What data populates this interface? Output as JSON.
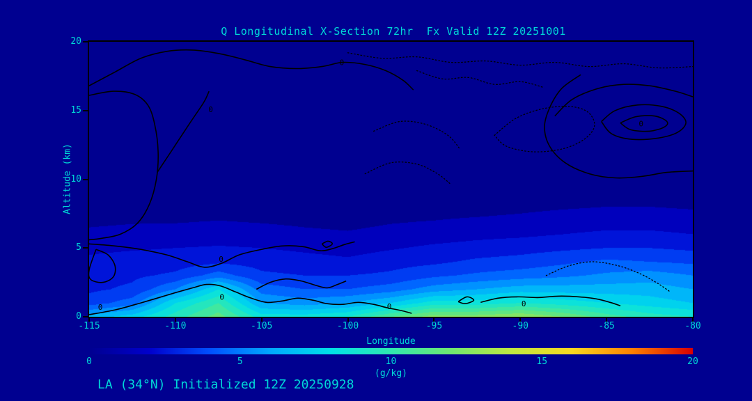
{
  "page": {
    "background_color": "#000090",
    "text_color": "#00d8d8",
    "contour_color": "#000000"
  },
  "chart_data": {
    "type": "heatmap",
    "title": "Q Longitudinal X-Section 72hr  Fx Valid 12Z 20251001",
    "xlabel": "Longitude",
    "ylabel": "Altitude (km)",
    "footer": "LA (34°N) Initialized 12Z 20250928",
    "units_label": "(g/kg)",
    "xlim": [
      -115,
      -80
    ],
    "ylim": [
      0,
      20
    ],
    "x_ticks": [
      "-115",
      "-110",
      "-105",
      "-100",
      "-95",
      "-90",
      "-85",
      "-80"
    ],
    "y_ticks": [
      "20",
      "15",
      "10",
      "5",
      "0"
    ],
    "colorbar": {
      "min": 0,
      "max": 20,
      "ticks": [
        "0",
        "5",
        "10",
        "15",
        "20"
      ],
      "stops": [
        [
          0,
          "#000090"
        ],
        [
          2,
          "#0000cc"
        ],
        [
          4,
          "#0050ff"
        ],
        [
          6,
          "#00a8ff"
        ],
        [
          8,
          "#00e0e8"
        ],
        [
          10,
          "#30e8b0"
        ],
        [
          12,
          "#70e870"
        ],
        [
          14,
          "#c0e840"
        ],
        [
          16,
          "#f8d820"
        ],
        [
          18,
          "#ff8000"
        ],
        [
          20,
          "#d80000"
        ]
      ]
    },
    "grid": {
      "lons": [
        -115,
        -112.5,
        -110,
        -107.5,
        -105,
        -102.5,
        -100,
        -97.5,
        -95,
        -92.5,
        -90,
        -87.5,
        -85,
        -82.5,
        -80
      ],
      "alts": [
        0,
        1,
        2,
        3,
        4,
        5,
        6,
        7,
        8,
        10,
        12,
        14,
        16,
        18,
        20
      ],
      "q": [
        [
          6.5,
          7.5,
          9.5,
          11.5,
          8.5,
          8.5,
          9.0,
          11.0,
          12.5,
          12.5,
          13.0,
          12.0,
          10.5,
          9.5,
          9.0
        ],
        [
          3.5,
          4.5,
          8.0,
          10.0,
          6.0,
          5.5,
          6.0,
          7.0,
          8.5,
          8.5,
          9.0,
          8.5,
          8.0,
          7.5,
          7.0
        ],
        [
          2.8,
          3.2,
          5.0,
          8.0,
          4.5,
          4.0,
          4.0,
          4.5,
          5.5,
          6.0,
          6.5,
          6.5,
          6.5,
          6.5,
          6.0
        ],
        [
          2.6,
          2.8,
          3.2,
          4.5,
          3.2,
          3.0,
          3.0,
          3.2,
          3.8,
          4.2,
          4.5,
          4.8,
          5.2,
          5.5,
          5.0
        ],
        [
          2.2,
          2.4,
          2.5,
          2.8,
          2.6,
          2.4,
          2.2,
          2.6,
          2.8,
          3.2,
          3.4,
          3.8,
          4.2,
          4.0,
          3.8
        ],
        [
          1.8,
          1.9,
          2.0,
          2.1,
          2.0,
          1.8,
          1.6,
          1.9,
          2.2,
          2.4,
          2.6,
          2.8,
          3.0,
          3.0,
          2.8
        ],
        [
          1.2,
          1.3,
          1.4,
          1.5,
          1.4,
          1.2,
          1.1,
          1.3,
          1.5,
          1.7,
          1.8,
          2.0,
          2.2,
          2.2,
          2.0
        ],
        [
          0.8,
          0.9,
          0.9,
          1.0,
          0.9,
          0.8,
          0.7,
          0.9,
          1.0,
          1.1,
          1.2,
          1.4,
          1.5,
          1.5,
          1.4
        ],
        [
          0.5,
          0.6,
          0.6,
          0.7,
          0.6,
          0.5,
          0.5,
          0.6,
          0.7,
          0.7,
          0.8,
          0.9,
          1.0,
          1.0,
          0.9
        ],
        [
          0.3,
          0.3,
          0.3,
          0.4,
          0.3,
          0.3,
          0.3,
          0.3,
          0.4,
          0.4,
          0.4,
          0.5,
          0.5,
          0.5,
          0.5
        ],
        [
          0.2,
          0.2,
          0.2,
          0.2,
          0.2,
          0.2,
          0.2,
          0.2,
          0.2,
          0.3,
          0.3,
          0.3,
          0.3,
          0.3,
          0.3
        ],
        [
          0.1,
          0.1,
          0.1,
          0.1,
          0.1,
          0.1,
          0.1,
          0.1,
          0.2,
          0.2,
          0.2,
          0.2,
          0.2,
          0.2,
          0.2
        ],
        [
          0.1,
          0.1,
          0.1,
          0.1,
          0.1,
          0.1,
          0.1,
          0.1,
          0.1,
          0.1,
          0.1,
          0.1,
          0.1,
          0.1,
          0.1
        ],
        [
          0.05,
          0.05,
          0.05,
          0.05,
          0.05,
          0.05,
          0.05,
          0.05,
          0.05,
          0.05,
          0.05,
          0.05,
          0.05,
          0.05,
          0.05
        ],
        [
          0.05,
          0.05,
          0.05,
          0.05,
          0.05,
          0.05,
          0.05,
          0.05,
          0.05,
          0.05,
          0.05,
          0.05,
          0.05,
          0.05,
          0.05
        ]
      ]
    },
    "contours": [
      {
        "style": "solid",
        "pts": [
          [
            -115,
            16.8
          ],
          [
            -113.5,
            17.8
          ],
          [
            -112,
            18.8
          ],
          [
            -110.5,
            19.3
          ],
          [
            -109,
            19.4
          ],
          [
            -107.5,
            19.15
          ],
          [
            -106,
            18.7
          ],
          [
            -104.5,
            18.2
          ],
          [
            -103,
            18.05
          ],
          [
            -101.5,
            18.2
          ],
          [
            -100.3,
            18.5
          ],
          [
            -99,
            18.35
          ],
          [
            -97.8,
            17.9
          ],
          [
            -96.8,
            17.2
          ],
          [
            -96.2,
            16.5
          ]
        ]
      },
      {
        "style": "solid",
        "pts": [
          [
            -115,
            16.1
          ],
          [
            -113.6,
            16.4
          ],
          [
            -112.4,
            16.2
          ],
          [
            -111.6,
            15.4
          ],
          [
            -111.2,
            14.0
          ],
          [
            -111.0,
            12.0
          ],
          [
            -111.1,
            10.0
          ],
          [
            -111.5,
            8.2
          ],
          [
            -112.2,
            6.8
          ],
          [
            -113.2,
            6.0
          ],
          [
            -114.3,
            5.7
          ],
          [
            -115,
            5.6
          ]
        ]
      },
      {
        "style": "solid",
        "pts": [
          [
            -111.05,
            10.5
          ],
          [
            -110.1,
            12.3
          ],
          [
            -109.1,
            14.2
          ],
          [
            -108.35,
            15.6
          ],
          [
            -108.05,
            16.4
          ]
        ]
      },
      {
        "style": "solid",
        "pts": [
          [
            -115,
            5.3
          ],
          [
            -113.5,
            5.15
          ],
          [
            -112,
            4.9
          ],
          [
            -110.5,
            4.5
          ],
          [
            -109.3,
            4.0
          ],
          [
            -108.3,
            3.6
          ],
          [
            -107.3,
            3.9
          ],
          [
            -106.3,
            4.5
          ],
          [
            -105,
            4.9
          ],
          [
            -103.8,
            5.15
          ],
          [
            -102.6,
            5.1
          ],
          [
            -101.6,
            4.8
          ],
          [
            -100.9,
            4.95
          ],
          [
            -100.2,
            5.25
          ],
          [
            -99.6,
            5.45
          ]
        ]
      },
      {
        "style": "solid",
        "pts": [
          [
            -114.6,
            4.9
          ],
          [
            -113.9,
            4.5
          ],
          [
            -113.5,
            3.7
          ],
          [
            -113.6,
            2.9
          ],
          [
            -114.2,
            2.5
          ],
          [
            -114.9,
            2.7
          ],
          [
            -115,
            3.4
          ],
          [
            -114.6,
            4.9
          ]
        ]
      },
      {
        "style": "solid",
        "pts": [
          [
            -115,
            0.15
          ],
          [
            -113.5,
            0.5
          ],
          [
            -112.3,
            0.9
          ],
          [
            -111.2,
            1.3
          ],
          [
            -110,
            1.75
          ],
          [
            -109,
            2.1
          ],
          [
            -108.2,
            2.35
          ],
          [
            -107.4,
            2.25
          ],
          [
            -106.5,
            1.8
          ],
          [
            -105.6,
            1.35
          ],
          [
            -104.7,
            1.05
          ],
          [
            -103.8,
            1.15
          ],
          [
            -102.9,
            1.35
          ],
          [
            -102,
            1.2
          ],
          [
            -101.2,
            0.95
          ],
          [
            -100.3,
            0.9
          ],
          [
            -99.4,
            1.05
          ],
          [
            -98.5,
            0.9
          ],
          [
            -97.7,
            0.65
          ],
          [
            -96.9,
            0.45
          ],
          [
            -96.3,
            0.25
          ]
        ]
      },
      {
        "style": "solid",
        "pts": [
          [
            -105.3,
            2.0
          ],
          [
            -104.5,
            2.5
          ],
          [
            -103.6,
            2.75
          ],
          [
            -102.7,
            2.6
          ],
          [
            -101.9,
            2.3
          ],
          [
            -101.2,
            2.1
          ],
          [
            -100.6,
            2.35
          ],
          [
            -100.1,
            2.6
          ]
        ]
      },
      {
        "style": "solid",
        "pts": [
          [
            -101.5,
            5.3
          ],
          [
            -101.15,
            5.5
          ],
          [
            -100.9,
            5.3
          ],
          [
            -101.25,
            5.05
          ],
          [
            -101.5,
            5.3
          ]
        ]
      },
      {
        "style": "solid",
        "pts": [
          [
            -93.6,
            1.1
          ],
          [
            -93.1,
            1.45
          ],
          [
            -92.7,
            1.2
          ],
          [
            -93.2,
            0.95
          ],
          [
            -93.6,
            1.1
          ]
        ]
      },
      {
        "style": "solid",
        "pts": [
          [
            -92.3,
            1.05
          ],
          [
            -91.3,
            1.35
          ],
          [
            -90.2,
            1.45
          ],
          [
            -89,
            1.4
          ],
          [
            -87.8,
            1.5
          ],
          [
            -86.6,
            1.45
          ],
          [
            -85.6,
            1.3
          ],
          [
            -84.8,
            1.05
          ],
          [
            -84.2,
            0.8
          ]
        ]
      },
      {
        "style": "solid",
        "pts": [
          [
            -86.5,
            17.6
          ],
          [
            -87.6,
            16.6
          ],
          [
            -88.3,
            15.2
          ],
          [
            -88.6,
            13.8
          ],
          [
            -88.3,
            12.4
          ],
          [
            -87.4,
            11.2
          ],
          [
            -86,
            10.4
          ],
          [
            -84.5,
            10.1
          ],
          [
            -83,
            10.2
          ],
          [
            -81.5,
            10.5
          ],
          [
            -80,
            10.6
          ]
        ]
      },
      {
        "style": "solid",
        "pts": [
          [
            -88,
            14.6
          ],
          [
            -87,
            15.8
          ],
          [
            -85.5,
            16.6
          ],
          [
            -84,
            16.9
          ],
          [
            -82.5,
            16.8
          ],
          [
            -81,
            16.4
          ],
          [
            -80,
            16.0
          ]
        ]
      },
      {
        "style": "solid",
        "pts": [
          [
            -85.3,
            14.2
          ],
          [
            -84.5,
            15.0
          ],
          [
            -83.2,
            15.4
          ],
          [
            -81.8,
            15.3
          ],
          [
            -80.8,
            14.8
          ],
          [
            -80.4,
            14.1
          ],
          [
            -80.9,
            13.4
          ],
          [
            -82,
            13.0
          ],
          [
            -83.5,
            12.9
          ],
          [
            -84.7,
            13.3
          ],
          [
            -85.3,
            14.2
          ]
        ]
      },
      {
        "style": "solid",
        "pts": [
          [
            -84.2,
            14.1
          ],
          [
            -83.3,
            14.55
          ],
          [
            -82.2,
            14.6
          ],
          [
            -81.5,
            14.2
          ],
          [
            -81.65,
            13.8
          ],
          [
            -82.5,
            13.5
          ],
          [
            -83.6,
            13.6
          ],
          [
            -84.2,
            14.1
          ]
        ]
      },
      {
        "style": "dotted",
        "pts": [
          [
            -100,
            19.2
          ],
          [
            -98,
            18.8
          ],
          [
            -96,
            18.9
          ],
          [
            -94,
            18.5
          ],
          [
            -92,
            18.6
          ],
          [
            -90,
            18.3
          ],
          [
            -88,
            18.5
          ],
          [
            -86,
            18.2
          ],
          [
            -84,
            18.4
          ],
          [
            -82,
            18.1
          ],
          [
            -80,
            18.2
          ]
        ]
      },
      {
        "style": "dotted",
        "pts": [
          [
            -91.5,
            13.2
          ],
          [
            -90.3,
            14.4
          ],
          [
            -88.8,
            15.1
          ],
          [
            -87.2,
            15.3
          ],
          [
            -86.1,
            14.9
          ],
          [
            -85.7,
            13.9
          ],
          [
            -86.3,
            12.9
          ],
          [
            -87.6,
            12.2
          ],
          [
            -89.3,
            12.0
          ],
          [
            -90.8,
            12.4
          ],
          [
            -91.5,
            13.2
          ]
        ]
      },
      {
        "style": "dotted",
        "pts": [
          [
            -98.5,
            13.5
          ],
          [
            -97,
            14.2
          ],
          [
            -95.5,
            14.0
          ],
          [
            -94.2,
            13.2
          ],
          [
            -93.5,
            12.2
          ]
        ]
      },
      {
        "style": "dotted",
        "pts": [
          [
            -99,
            10.4
          ],
          [
            -97.5,
            11.2
          ],
          [
            -96,
            11.1
          ],
          [
            -94.8,
            10.4
          ],
          [
            -94,
            9.6
          ]
        ]
      },
      {
        "style": "dotted",
        "pts": [
          [
            -88.5,
            3.0
          ],
          [
            -87.2,
            3.7
          ],
          [
            -85.8,
            4.0
          ],
          [
            -84.3,
            3.7
          ],
          [
            -83,
            3.1
          ],
          [
            -82,
            2.4
          ],
          [
            -81.3,
            1.8
          ]
        ]
      },
      {
        "style": "dotted",
        "pts": [
          [
            -96,
            17.9
          ],
          [
            -94.5,
            17.3
          ],
          [
            -93,
            17.4
          ],
          [
            -91.5,
            16.9
          ],
          [
            -90,
            17.1
          ],
          [
            -88.7,
            16.7
          ]
        ]
      }
    ],
    "contour_labels": [
      {
        "text": "0",
        "lon": -100.35,
        "alt": 18.5
      },
      {
        "text": "0",
        "lon": -107.95,
        "alt": 15.1
      },
      {
        "text": "0",
        "lon": -107.35,
        "alt": 4.2
      },
      {
        "text": "0",
        "lon": -107.3,
        "alt": 1.45
      },
      {
        "text": "0",
        "lon": -97.6,
        "alt": 0.75
      },
      {
        "text": "0",
        "lon": -89.8,
        "alt": 0.95
      },
      {
        "text": "0",
        "lon": -114.35,
        "alt": 0.7
      },
      {
        "text": "0",
        "lon": -83.0,
        "alt": 14.05
      }
    ]
  }
}
